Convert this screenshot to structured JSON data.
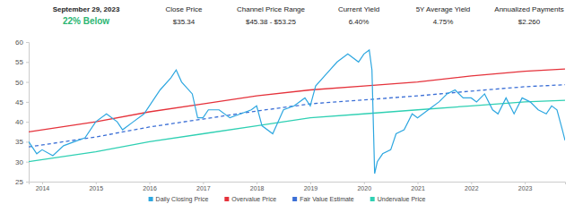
{
  "chart_data": {
    "type": "line",
    "annotations": [
      {
        "label": "September 29, 2023",
        "value": "22% Below"
      },
      {
        "label": "Close Price",
        "value": "$35.34"
      },
      {
        "label": "Channel Price Range",
        "value": "$45.38 - $53.25"
      },
      {
        "label": "Current Yield",
        "value": "6.40%"
      },
      {
        "label": "5Y Average Yield",
        "value": "4.75%"
      },
      {
        "label": "Annualized Payments",
        "value": "$2.260"
      }
    ],
    "xlim": [
      2013.75,
      2023.75
    ],
    "xticks": [
      2014,
      2015,
      2016,
      2017,
      2018,
      2019,
      2020,
      2021,
      2022,
      2023
    ],
    "ylim": [
      25,
      60
    ],
    "yticks": [
      25,
      30,
      35,
      40,
      45,
      50,
      55,
      60
    ],
    "grid": false,
    "legend": "bottom",
    "series": [
      {
        "name": "Daily Closing Price",
        "color": "#2ea7e0",
        "line_style": "solid",
        "x": [
          2013.75,
          2013.9,
          2014.0,
          2014.2,
          2014.4,
          2014.6,
          2014.8,
          2015.0,
          2015.2,
          2015.4,
          2015.5,
          2015.7,
          2015.9,
          2016.0,
          2016.2,
          2016.4,
          2016.5,
          2016.6,
          2016.8,
          2016.9,
          2017.0,
          2017.1,
          2017.3,
          2017.5,
          2017.7,
          2017.9,
          2018.0,
          2018.1,
          2018.3,
          2018.5,
          2018.7,
          2018.9,
          2019.0,
          2019.1,
          2019.3,
          2019.5,
          2019.7,
          2019.9,
          2020.0,
          2020.1,
          2020.15,
          2020.2,
          2020.25,
          2020.35,
          2020.5,
          2020.6,
          2020.75,
          2020.9,
          2021.0,
          2021.2,
          2021.4,
          2021.55,
          2021.7,
          2021.85,
          2022.0,
          2022.1,
          2022.25,
          2022.4,
          2022.5,
          2022.65,
          2022.8,
          2022.95,
          2023.1,
          2023.25,
          2023.4,
          2023.5,
          2023.6,
          2023.7,
          2023.75
        ],
        "values": [
          35,
          32,
          33,
          31.5,
          34,
          35,
          36,
          40,
          42,
          40,
          38,
          40,
          42,
          44,
          48,
          51,
          53,
          50,
          47,
          41,
          41,
          43,
          43,
          41,
          42,
          43,
          44,
          39,
          37,
          43,
          44,
          46,
          44,
          49,
          52,
          55,
          57,
          55,
          57,
          58,
          53,
          27,
          30,
          32,
          33,
          37,
          38,
          42,
          41,
          43,
          45,
          47,
          48,
          46,
          46,
          45,
          47,
          43,
          42,
          46,
          42,
          46,
          45,
          43,
          42,
          44,
          43,
          38,
          35.34
        ]
      },
      {
        "name": "Overvalue Price",
        "color": "#e5323b",
        "line_style": "solid",
        "x": [
          2013.75,
          2015,
          2016,
          2017,
          2018,
          2019,
          2020,
          2021,
          2022,
          2023,
          2023.75
        ],
        "values": [
          37.5,
          40,
          42.5,
          44.5,
          46.5,
          48,
          49,
          50,
          51.5,
          52.7,
          53.25
        ]
      },
      {
        "name": "Fair Value Estimate",
        "color": "#3b6fd6",
        "line_style": "dashed",
        "x": [
          2013.75,
          2015,
          2016,
          2017,
          2018,
          2019,
          2020,
          2021,
          2022,
          2023,
          2023.75
        ],
        "values": [
          33.7,
          36.2,
          38.7,
          40.7,
          42.7,
          44.5,
          45.5,
          46.5,
          47.7,
          48.8,
          49.3
        ]
      },
      {
        "name": "Undervalue Price",
        "color": "#2fd0b3",
        "line_style": "solid",
        "x": [
          2013.75,
          2015,
          2016,
          2017,
          2018,
          2019,
          2020,
          2021,
          2022,
          2023,
          2023.75
        ],
        "values": [
          30,
          32.5,
          35,
          37,
          39,
          41,
          42,
          43,
          44,
          45,
          45.38
        ]
      }
    ]
  }
}
